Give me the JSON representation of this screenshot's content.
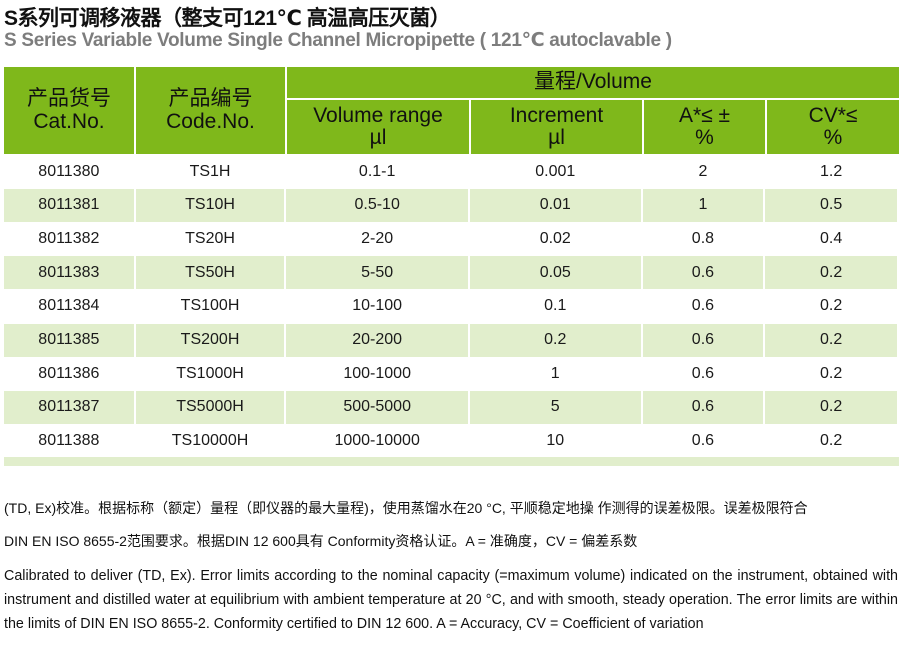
{
  "title_cn": "S系列可调移液器（整支可121℃ 高温高压灭菌）",
  "title_en": "S Series Variable Volume Single Channel Micropipette ( 121℃ autoclavable )",
  "colors": {
    "header": "#7fb81b",
    "alt_row": "#e1eecc"
  },
  "table": {
    "headers": {
      "cat_cn": "产品货号",
      "cat_en": "Cat.No.",
      "code_cn": "产品编号",
      "code_en": "Code.No.",
      "group": "量程/Volume",
      "range1": "Volume range",
      "range2": "µl",
      "inc1": "Increment",
      "inc2": "µl",
      "acc1": "A*≤ ±",
      "acc2": "%",
      "cv1": "CV*≤",
      "cv2": "%"
    },
    "rows": [
      [
        "8011380",
        "TS1H",
        "0.1-1",
        "0.001",
        "2",
        "1.2"
      ],
      [
        "8011381",
        "TS10H",
        "0.5-10",
        "0.01",
        "1",
        "0.5"
      ],
      [
        "8011382",
        "TS20H",
        "2-20",
        "0.02",
        "0.8",
        "0.4"
      ],
      [
        "8011383",
        "TS50H",
        "5-50",
        "0.05",
        "0.6",
        "0.2"
      ],
      [
        "8011384",
        "TS100H",
        "10-100",
        "0.1",
        "0.6",
        "0.2"
      ],
      [
        "8011385",
        "TS200H",
        "20-200",
        "0.2",
        "0.6",
        "0.2"
      ],
      [
        "8011386",
        "TS1000H",
        "100-1000",
        "1",
        "0.6",
        "0.2"
      ],
      [
        "8011387",
        "TS5000H",
        "500-5000",
        "5",
        "0.6",
        "0.2"
      ],
      [
        "8011388",
        "TS10000H",
        "1000-10000",
        "10",
        "0.6",
        "0.2"
      ]
    ]
  },
  "notes": {
    "cn1": "(TD, Ex)校准。根据标称（额定）量程（即仪器的最大量程)，使用蒸馏水在20 °C,  平顺稳定地操 作测得的误差极限。误差极限符合",
    "cn2": "DIN EN ISO 8655-2范围要求。根据DIN 12 600具有 Conformity资格认证。A = 准确度，CV = 偏差系数",
    "en": "Calibrated to deliver (TD, Ex). Error limits according to the nominal capacity (=maximum volume) indicated on the instrument, obtained with instrument and distilled  water at equilibrium with ambient temperature at 20 °C, and with smooth, steady operation. The error limits are within the limits of DIN EN ISO 8655-2. Conformity certified to DIN 12 600. A = Accuracy,  CV = Coefficient of variation"
  }
}
